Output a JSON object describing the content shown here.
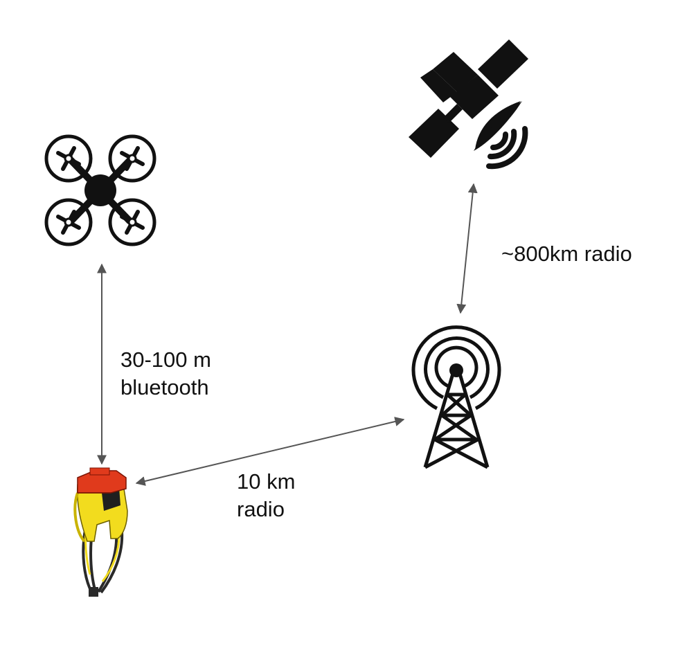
{
  "nodes": {
    "drone": {
      "icon": "drone-icon"
    },
    "satellite": {
      "icon": "satellite-icon"
    },
    "tower": {
      "icon": "radio-tower-icon"
    },
    "tracker": {
      "icon": "wearable-tracker-device-icon"
    }
  },
  "links": {
    "drone_tracker": {
      "line1": "30-100 m",
      "line2": "bluetooth"
    },
    "tracker_tower": {
      "line1": "10 km",
      "line2": "radio"
    },
    "tower_satellite": {
      "line1": "~800km radio"
    }
  },
  "colors": {
    "icon": "#111111",
    "arrow": "#555555",
    "device_body": "#f2dc1e",
    "device_cap": "#e03a1c",
    "strap": "#2a2a2a"
  }
}
